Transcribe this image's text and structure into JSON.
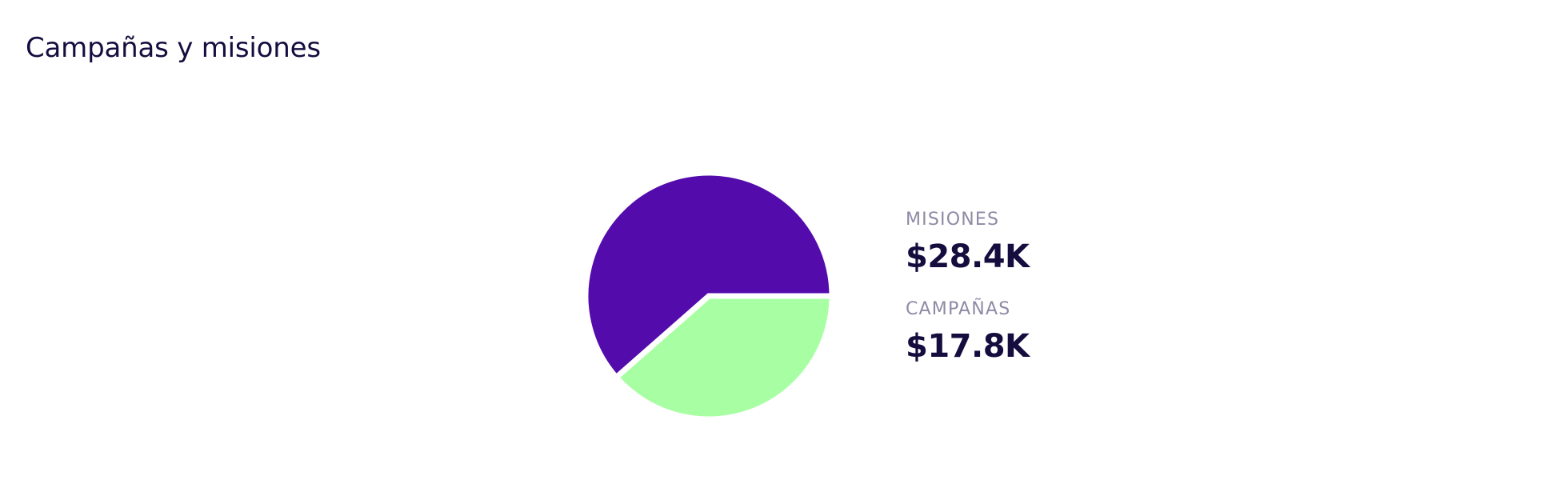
{
  "header": {
    "title": "Campañas y misiones"
  },
  "chart_data": {
    "type": "pie",
    "start_angle_deg": 0,
    "direction": "clockwise",
    "slices": [
      {
        "label": "CAMPAÑAS",
        "display": "$17.8K",
        "value": 17.8,
        "color": "#a8ffa3"
      },
      {
        "label": "MISIONES",
        "display": "$28.4K",
        "value": 28.4,
        "color": "#540bac"
      }
    ],
    "legend_placement": "right",
    "unit": "K USD"
  }
}
